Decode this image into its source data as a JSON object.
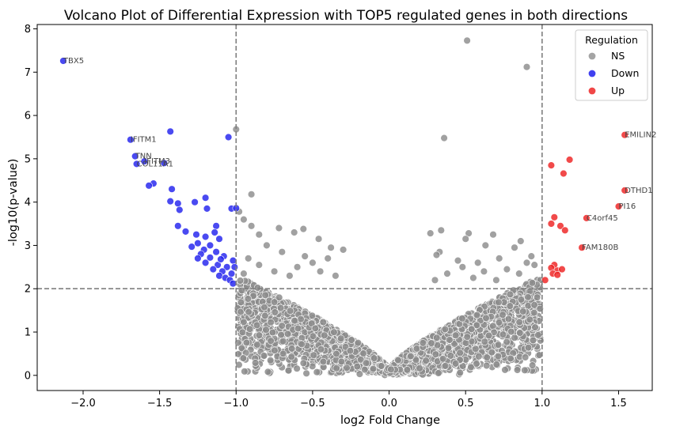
{
  "chart_data": {
    "type": "scatter",
    "title": "Volcano Plot of Differential Expression with TOP5 regulated genes in both directions",
    "xlabel": "log2 Fold Change",
    "ylabel": "-log10(p-value)",
    "xlim": [
      -2.3,
      1.72
    ],
    "ylim": [
      -0.35,
      8.1
    ],
    "xticks": [
      -2.0,
      -1.5,
      -1.0,
      -0.5,
      0.0,
      0.5,
      1.0,
      1.5
    ],
    "xtick_labels": [
      "−2.0",
      "−1.5",
      "−1.0",
      "−0.5",
      "0.0",
      "0.5",
      "1.0",
      "1.5"
    ],
    "yticks": [
      0,
      1,
      2,
      3,
      4,
      5,
      6,
      7,
      8
    ],
    "ytick_labels": [
      "0",
      "1",
      "2",
      "3",
      "4",
      "5",
      "6",
      "7",
      "8"
    ],
    "thresholds": {
      "x": [
        -1.0,
        1.0
      ],
      "y": 2.0
    },
    "grid": false,
    "legend": {
      "title": "Regulation",
      "position": "top-right",
      "entries": [
        {
          "name": "NS",
          "color": "#9a9a9a"
        },
        {
          "name": "Down",
          "color": "#2b2bee"
        },
        {
          "name": "Up",
          "color": "#ee3333"
        }
      ]
    },
    "series": [
      {
        "name": "NS",
        "color": "#8c8c8c",
        "points": [
          [
            0.51,
            7.73
          ],
          [
            0.9,
            7.12
          ],
          [
            -1.0,
            5.68
          ],
          [
            0.36,
            5.48
          ],
          [
            -0.9,
            4.18
          ],
          [
            -0.98,
            3.78
          ],
          [
            -0.95,
            3.6
          ],
          [
            -0.9,
            3.45
          ],
          [
            -0.72,
            3.4
          ],
          [
            -0.85,
            3.25
          ],
          [
            -0.62,
            3.3
          ],
          [
            -0.56,
            3.38
          ],
          [
            -0.46,
            3.15
          ],
          [
            -0.38,
            2.95
          ],
          [
            -0.3,
            2.9
          ],
          [
            -0.8,
            3.0
          ],
          [
            -0.7,
            2.85
          ],
          [
            -0.55,
            2.75
          ],
          [
            -0.92,
            2.7
          ],
          [
            -0.6,
            2.5
          ],
          [
            -0.5,
            2.6
          ],
          [
            -0.4,
            2.7
          ],
          [
            -0.75,
            2.4
          ],
          [
            -0.85,
            2.55
          ],
          [
            -0.65,
            2.3
          ],
          [
            -0.45,
            2.4
          ],
          [
            -0.95,
            2.35
          ],
          [
            -0.35,
            2.3
          ],
          [
            0.27,
            3.28
          ],
          [
            0.34,
            3.35
          ],
          [
            0.52,
            3.28
          ],
          [
            0.5,
            3.15
          ],
          [
            0.68,
            3.25
          ],
          [
            0.86,
            3.1
          ],
          [
            0.63,
            3.0
          ],
          [
            0.82,
            2.95
          ],
          [
            0.33,
            2.85
          ],
          [
            0.31,
            2.78
          ],
          [
            0.45,
            2.65
          ],
          [
            0.58,
            2.6
          ],
          [
            0.72,
            2.7
          ],
          [
            0.93,
            2.75
          ],
          [
            0.9,
            2.6
          ],
          [
            0.77,
            2.45
          ],
          [
            0.62,
            2.4
          ],
          [
            0.48,
            2.5
          ],
          [
            0.38,
            2.35
          ],
          [
            0.3,
            2.2
          ],
          [
            0.85,
            2.35
          ],
          [
            0.95,
            2.55
          ],
          [
            0.55,
            2.25
          ],
          [
            0.7,
            2.2
          ]
        ]
      },
      {
        "name": "Down",
        "color": "#2222ee",
        "points": [
          [
            -2.13,
            7.26
          ],
          [
            -1.69,
            5.44
          ],
          [
            -1.43,
            5.63
          ],
          [
            -1.05,
            5.5
          ],
          [
            -1.66,
            5.06
          ],
          [
            -1.6,
            4.94
          ],
          [
            -1.65,
            4.88
          ],
          [
            -1.47,
            4.9
          ],
          [
            -1.54,
            4.43
          ],
          [
            -1.57,
            4.38
          ],
          [
            -1.42,
            4.3
          ],
          [
            -1.2,
            4.1
          ],
          [
            -1.38,
            3.97
          ],
          [
            -1.43,
            4.02
          ],
          [
            -1.27,
            4.0
          ],
          [
            -1.37,
            3.82
          ],
          [
            -1.19,
            3.85
          ],
          [
            -1.03,
            3.85
          ],
          [
            -1.0,
            3.86
          ],
          [
            -1.38,
            3.45
          ],
          [
            -1.13,
            3.45
          ],
          [
            -1.14,
            3.3
          ],
          [
            -1.33,
            3.32
          ],
          [
            -1.26,
            3.25
          ],
          [
            -1.2,
            3.2
          ],
          [
            -1.11,
            3.15
          ],
          [
            -1.25,
            3.05
          ],
          [
            -1.17,
            3.0
          ],
          [
            -1.29,
            2.97
          ],
          [
            -1.21,
            2.9
          ],
          [
            -1.13,
            2.85
          ],
          [
            -1.23,
            2.8
          ],
          [
            -1.08,
            2.75
          ],
          [
            -1.17,
            2.72
          ],
          [
            -1.02,
            2.65
          ],
          [
            -1.2,
            2.6
          ],
          [
            -1.12,
            2.55
          ],
          [
            -1.06,
            2.5
          ],
          [
            -1.15,
            2.45
          ],
          [
            -1.09,
            2.4
          ],
          [
            -1.03,
            2.35
          ],
          [
            -1.11,
            2.3
          ],
          [
            -1.07,
            2.25
          ],
          [
            -1.04,
            2.2
          ],
          [
            -1.02,
            2.12
          ],
          [
            -1.1,
            2.68
          ],
          [
            -1.25,
            2.7
          ],
          [
            -1.01,
            2.5
          ]
        ]
      },
      {
        "name": "Up",
        "color": "#ee2222",
        "points": [
          [
            1.54,
            5.55
          ],
          [
            1.18,
            4.98
          ],
          [
            1.06,
            4.85
          ],
          [
            1.14,
            4.66
          ],
          [
            1.54,
            4.27
          ],
          [
            1.5,
            3.9
          ],
          [
            1.08,
            3.65
          ],
          [
            1.29,
            3.63
          ],
          [
            1.06,
            3.5
          ],
          [
            1.12,
            3.45
          ],
          [
            1.15,
            3.35
          ],
          [
            1.26,
            2.95
          ],
          [
            1.08,
            2.55
          ],
          [
            1.06,
            2.48
          ],
          [
            1.1,
            2.42
          ],
          [
            1.13,
            2.45
          ],
          [
            1.07,
            2.35
          ],
          [
            1.1,
            2.32
          ],
          [
            1.02,
            2.2
          ]
        ]
      }
    ],
    "annotations": [
      {
        "text": "TBX5",
        "x": -2.13,
        "y": 7.26
      },
      {
        "text": "IFITM1",
        "x": -1.69,
        "y": 5.44
      },
      {
        "text": "TNN",
        "x": -1.66,
        "y": 5.06
      },
      {
        "text": "IFITM3",
        "x": -1.6,
        "y": 4.94
      },
      {
        "text": "COL11A1",
        "x": -1.65,
        "y": 4.88
      },
      {
        "text": "EMILIN2",
        "x": 1.54,
        "y": 5.55
      },
      {
        "text": "DTHD1",
        "x": 1.54,
        "y": 4.27
      },
      {
        "text": "PI16",
        "x": 1.5,
        "y": 3.9
      },
      {
        "text": "C4orf45",
        "x": 1.29,
        "y": 3.63
      },
      {
        "text": "FAM180B",
        "x": 1.26,
        "y": 2.95
      }
    ]
  }
}
